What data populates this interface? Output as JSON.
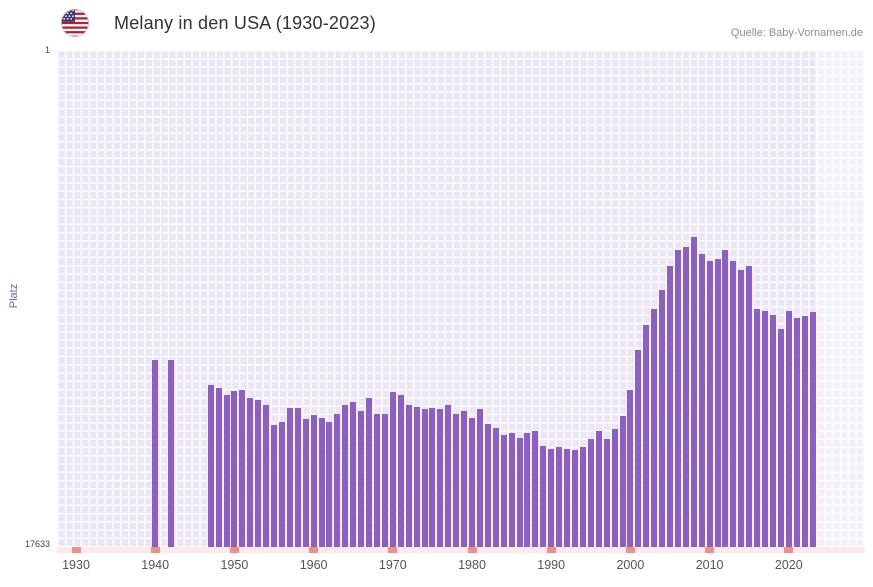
{
  "header": {
    "title": "Melany in den USA (1930-2023)",
    "source": "Quelle: Baby-Vornamen.de",
    "flag_icon": "us-flag-icon"
  },
  "chart_data": {
    "type": "bar",
    "title": "Melany in den USA (1930-2023)",
    "xlabel": "",
    "ylabel": "Platz",
    "y_axis": {
      "top_label": "1",
      "bottom_label": "17633",
      "min": 1,
      "max": 17633,
      "inverted": true,
      "note": "rank 1 at top, taller bar = better rank"
    },
    "x_range": [
      1930,
      2023
    ],
    "x_ticks": [
      1930,
      1940,
      1950,
      1960,
      1970,
      1980,
      1990,
      2000,
      2010,
      2020
    ],
    "grid": true,
    "legend": false,
    "start_year": 1930,
    "ranks": [
      null,
      null,
      null,
      null,
      null,
      null,
      null,
      null,
      null,
      null,
      11000,
      null,
      11000,
      null,
      null,
      null,
      null,
      11900,
      12000,
      12250,
      12100,
      12050,
      12350,
      12400,
      12600,
      13300,
      13200,
      12700,
      12700,
      13100,
      12950,
      13050,
      13200,
      12900,
      12600,
      12500,
      12800,
      12350,
      12900,
      12900,
      12150,
      12250,
      12600,
      12650,
      12750,
      12700,
      12750,
      12600,
      12900,
      12800,
      13050,
      12750,
      13250,
      13400,
      13650,
      13600,
      13750,
      13600,
      13500,
      14050,
      14150,
      14100,
      14150,
      14200,
      14100,
      13800,
      13500,
      13800,
      13450,
      13000,
      12050,
      10650,
      9750,
      9200,
      8500,
      7650,
      7100,
      7000,
      6650,
      7250,
      7500,
      7400,
      7100,
      7500,
      7800,
      7650,
      9200,
      9250,
      9400,
      9900,
      9250,
      9500,
      9450,
      9300
    ],
    "colors": {
      "bar": "#8d5ec3",
      "plot_bg": "#eae6f3",
      "grid": "#ffffff",
      "axis_band": "#fbe9eb",
      "axis_tick": "#ee8f8a",
      "ylabel_color": "#7a5ba8"
    }
  }
}
